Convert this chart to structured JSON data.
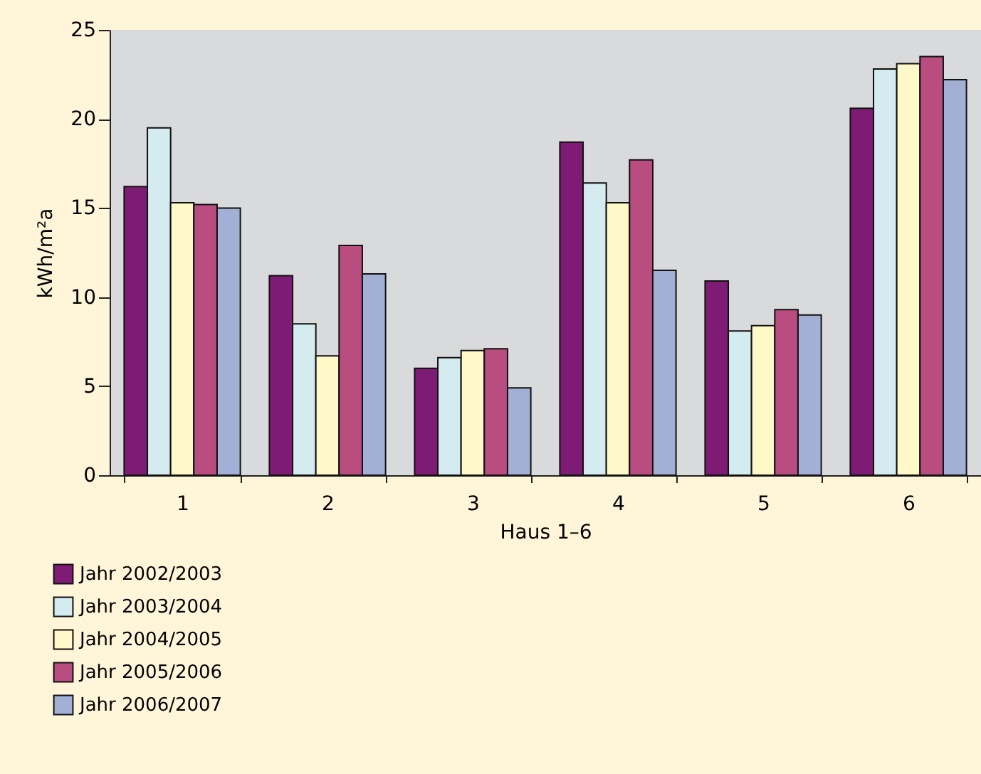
{
  "chart_data": {
    "type": "bar",
    "xlabel": "Haus 1–6",
    "ylabel": "kWh/m²a",
    "categories": [
      "1",
      "2",
      "3",
      "4",
      "5",
      "6"
    ],
    "series": [
      {
        "name": "Jahr 2002/2003",
        "color": "#7e1c75",
        "values": [
          16.2,
          11.2,
          6.0,
          18.7,
          10.9,
          20.6
        ]
      },
      {
        "name": "Jahr 2003/2004",
        "color": "#d4ecef",
        "values": [
          19.5,
          8.5,
          6.6,
          16.4,
          8.1,
          22.8
        ]
      },
      {
        "name": "Jahr 2004/2005",
        "color": "#fff8c8",
        "values": [
          15.3,
          6.7,
          7.0,
          15.3,
          8.4,
          23.1
        ]
      },
      {
        "name": "Jahr 2005/2006",
        "color": "#b94d80",
        "values": [
          15.2,
          12.9,
          7.1,
          17.7,
          9.3,
          23.5
        ]
      },
      {
        "name": "Jahr 2006/2007",
        "color": "#a3b0d6",
        "values": [
          15.0,
          11.3,
          4.9,
          11.5,
          9.0,
          22.2
        ]
      }
    ],
    "ylim": [
      0,
      25
    ],
    "yticks": [
      0,
      5,
      10,
      15,
      20,
      25
    ],
    "legend": "bottom left"
  }
}
